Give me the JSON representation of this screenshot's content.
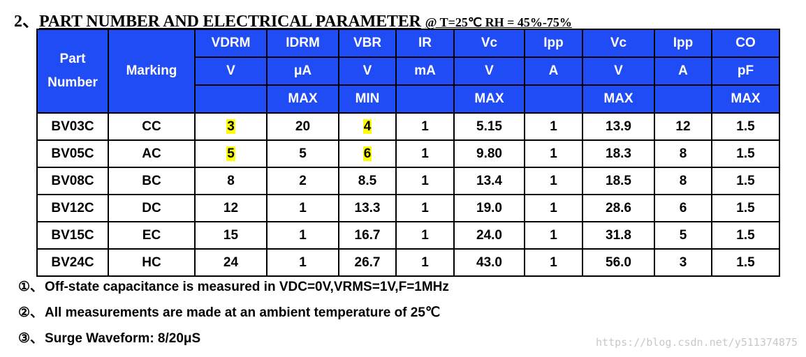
{
  "heading": {
    "number": "2、",
    "title": "PART NUMBER AND ELECTRICAL PARAMETER",
    "conditions": "@ T=25℃ RH = 45%-75%"
  },
  "table": {
    "header": {
      "part_number": "Part Number",
      "marking": "Marking",
      "params": [
        {
          "name": "VDRM",
          "unit": "V",
          "limit": ""
        },
        {
          "name": "IDRM",
          "unit": "μA",
          "limit": "MAX"
        },
        {
          "name": "VBR",
          "unit": "V",
          "limit": "MIN"
        },
        {
          "name": "IR",
          "unit": "mA",
          "limit": ""
        },
        {
          "name": "Vc",
          "unit": "V",
          "limit": "MAX"
        },
        {
          "name": "Ipp",
          "unit": "A",
          "limit": ""
        },
        {
          "name": "Vc",
          "unit": "V",
          "limit": "MAX"
        },
        {
          "name": "Ipp",
          "unit": "A",
          "limit": ""
        },
        {
          "name": "CO",
          "unit": "pF",
          "limit": "MAX"
        }
      ]
    },
    "rows": [
      [
        "BV03C",
        "CC",
        "3",
        "20",
        "4",
        "1",
        "5.15",
        "1",
        "13.9",
        "12",
        "1.5"
      ],
      [
        "BV05C",
        "AC",
        "5",
        "5",
        "6",
        "1",
        "9.80",
        "1",
        "18.3",
        "8",
        "1.5"
      ],
      [
        "BV08C",
        "BC",
        "8",
        "2",
        "8.5",
        "1",
        "13.4",
        "1",
        "18.5",
        "8",
        "1.5"
      ],
      [
        "BV12C",
        "DC",
        "12",
        "1",
        "13.3",
        "1",
        "19.0",
        "1",
        "28.6",
        "6",
        "1.5"
      ],
      [
        "BV15C",
        "EC",
        "15",
        "1",
        "16.7",
        "1",
        "24.0",
        "1",
        "31.8",
        "5",
        "1.5"
      ],
      [
        "BV24C",
        "HC",
        "24",
        "1",
        "26.7",
        "1",
        "43.0",
        "1",
        "56.0",
        "3",
        "1.5"
      ]
    ],
    "highlight_color": "#ffff00",
    "header_color": "#1f4cf5"
  },
  "notes": [
    {
      "mark": "①、",
      "text": "Off-state capacitance is measured in VDC=0V,VRMS=1V,F=1MHz"
    },
    {
      "mark": "②、",
      "text": "All measurements are made at an ambient temperature of 25℃"
    },
    {
      "mark": "③、",
      "text": "Surge Waveform: 8/20μS"
    }
  ],
  "watermark": "https://blog.csdn.net/y511374875"
}
